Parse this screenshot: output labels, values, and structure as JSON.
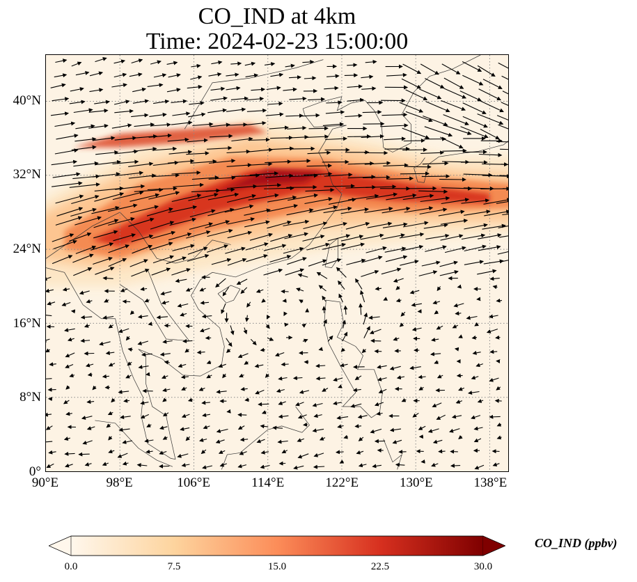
{
  "title": {
    "line1": "CO_IND at 4km",
    "line2": "Time: 2024-02-23 15:00:00"
  },
  "map": {
    "extent": {
      "lon": [
        90,
        140
      ],
      "lat": [
        0,
        45
      ]
    },
    "gridlines": {
      "lon": [
        98,
        106,
        114,
        122,
        130,
        138
      ],
      "lat": [
        8,
        16,
        24,
        32,
        40
      ],
      "style": "dotted grey"
    },
    "x_tick_labels": [
      "90°E",
      "98°E",
      "106°E",
      "114°E",
      "122°E",
      "130°E",
      "138°E"
    ],
    "x_tick_values": [
      90,
      98,
      106,
      114,
      122,
      130,
      138
    ],
    "y_tick_labels": [
      "0°",
      "8°N",
      "16°N",
      "24°N",
      "32°N",
      "40°N"
    ],
    "y_tick_values": [
      0,
      8,
      16,
      24,
      32,
      40
    ],
    "field": "CO_IND",
    "units": "ppbv",
    "colormap": "OrRd",
    "plume_band_description": "westerly band of elevated CO from ~90°E 25°N to 140°E 30°N peaking over eastern China 30-33°N",
    "wind_vectors": "black arrows, strong westerlies north of 20°N, weak easterlies over South China Sea"
  },
  "colorbar": {
    "label": "CO_IND (ppbv)",
    "ticks": [
      "0.0",
      "7.5",
      "15.0",
      "22.5",
      "30.0"
    ],
    "min": 0,
    "max": 30,
    "colors": [
      "#fff7ec",
      "#fdd49e",
      "#fc8d59",
      "#d7301f",
      "#7f0000"
    ],
    "extend": "both"
  }
}
